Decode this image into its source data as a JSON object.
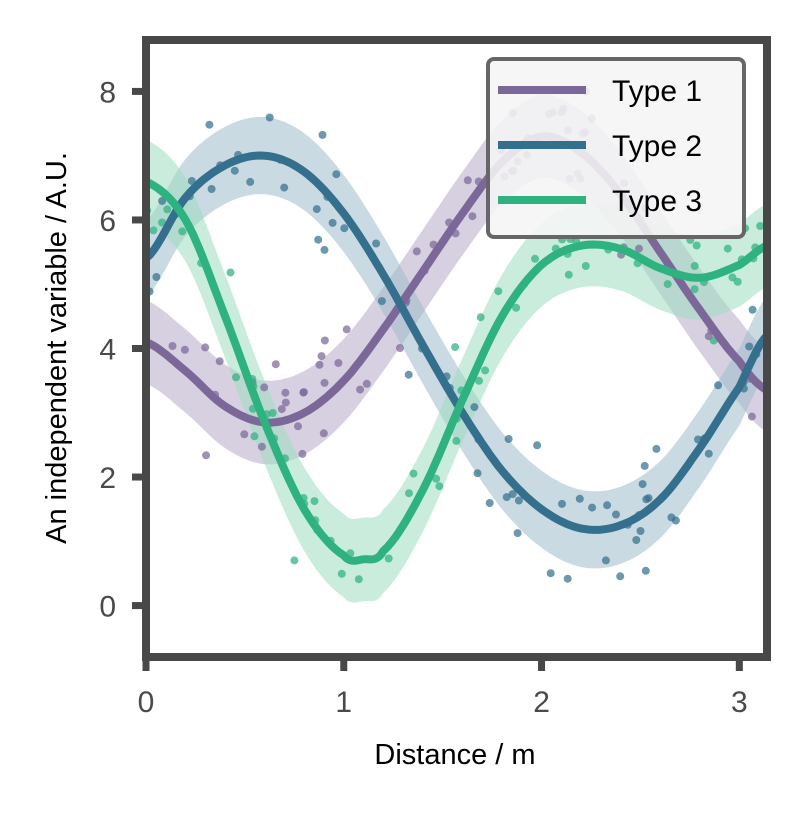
{
  "chart_data": {
    "type": "line",
    "xlabel": "Distance / m",
    "ylabel": "An independent variable / A.U.",
    "xlim": [
      0,
      3.14
    ],
    "ylim": [
      -0.8,
      8.8
    ],
    "xticks": [
      0,
      1,
      2,
      3
    ],
    "yticks": [
      0,
      2,
      4,
      6,
      8
    ],
    "grid": false,
    "legend_position": "top-right",
    "series": [
      {
        "name": "Type 1",
        "color": "#7b6899",
        "band_color": "#b7aac9",
        "x": [
          0,
          0.2,
          0.4,
          0.6,
          0.8,
          1.0,
          1.2,
          1.4,
          1.6,
          1.8,
          2.0,
          2.2,
          2.4,
          2.6,
          2.8,
          3.0,
          3.14
        ],
        "y": [
          4.1,
          3.65,
          3.1,
          2.85,
          3.0,
          3.5,
          4.3,
          5.2,
          6.1,
          6.9,
          7.3,
          7.05,
          6.4,
          5.5,
          4.6,
          3.8,
          3.35
        ],
        "band_width": 0.65
      },
      {
        "name": "Type 2",
        "color": "#34708e",
        "band_color": "#9fbccb",
        "x": [
          0,
          0.2,
          0.4,
          0.6,
          0.8,
          1.0,
          1.2,
          1.4,
          1.6,
          1.8,
          2.0,
          2.2,
          2.4,
          2.6,
          2.8,
          3.0,
          3.14
        ],
        "y": [
          5.4,
          6.35,
          6.85,
          7.0,
          6.75,
          6.1,
          5.15,
          4.05,
          3.0,
          2.1,
          1.5,
          1.2,
          1.25,
          1.65,
          2.45,
          3.4,
          4.2
        ],
        "band_width": 0.6
      },
      {
        "name": "Type 3",
        "color": "#2eb27f",
        "band_color": "#9edcc1",
        "x": [
          0,
          0.2,
          0.4,
          0.6,
          0.8,
          1.0,
          1.1,
          1.2,
          1.4,
          1.6,
          1.8,
          2.0,
          2.2,
          2.4,
          2.6,
          2.8,
          3.0,
          3.14
        ],
        "y": [
          6.6,
          6.0,
          4.5,
          2.85,
          1.5,
          0.78,
          0.72,
          0.85,
          1.8,
          3.2,
          4.5,
          5.3,
          5.6,
          5.55,
          5.25,
          5.1,
          5.3,
          5.6
        ],
        "band_width": 0.65
      }
    ]
  }
}
